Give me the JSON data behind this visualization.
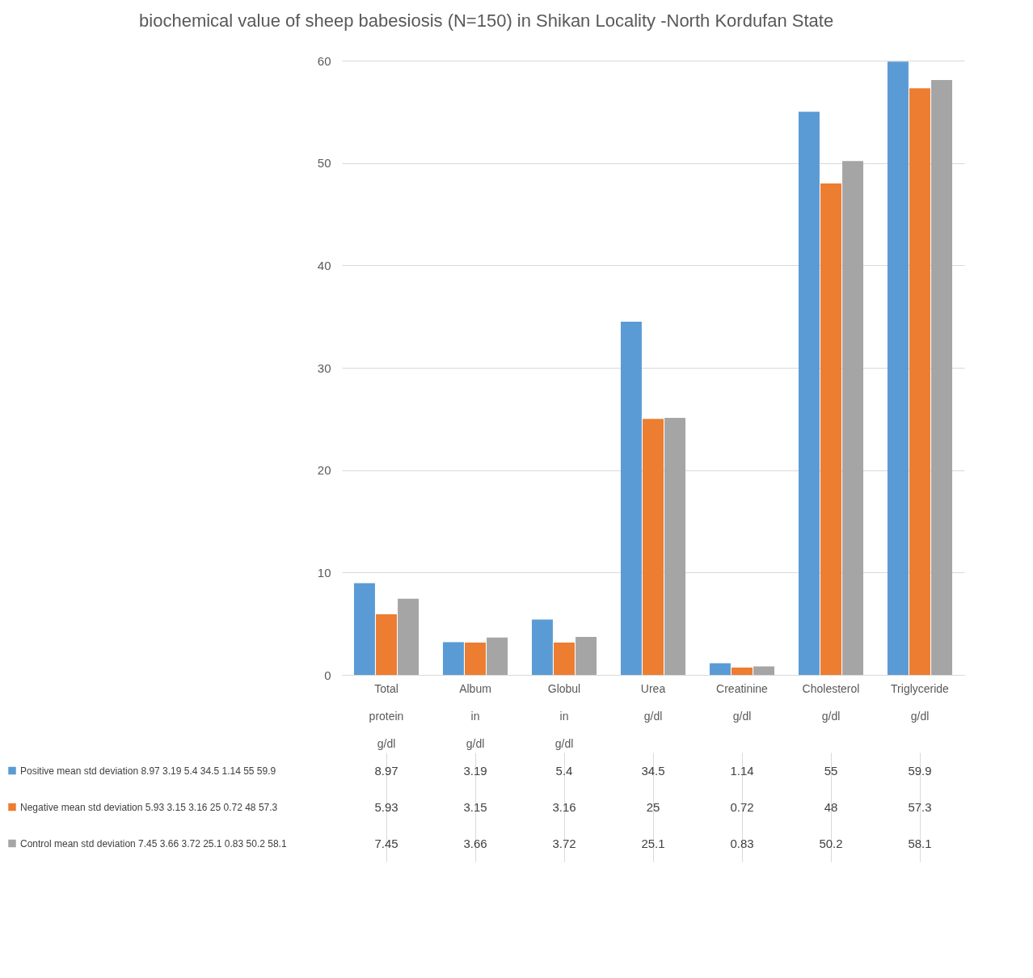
{
  "chart_data": {
    "type": "bar",
    "title": "biochemical value of sheep babesiosis (N=150) in Shikan Locality -North Kordufan State",
    "categories": [
      "Total protein g/dl",
      "Album in g/dl",
      "Globul in g/dl",
      "Urea g/dl",
      "Creatinine g/dl",
      "Cholesterol g/dl",
      "Triglyceride g/dl"
    ],
    "series": [
      {
        "name": "Positive  mean std deviation 8.97 3.19 5.4 34.5 1.14 55 59.9",
        "color": "#5b9bd5",
        "values": [
          8.97,
          3.19,
          5.4,
          34.5,
          1.14,
          55,
          59.9
        ]
      },
      {
        "name": "Negative  mean std deviation 5.93 3.15 3.16 25 0.72 48 57.3",
        "color": "#ed7d31",
        "values": [
          5.93,
          3.15,
          3.16,
          25,
          0.72,
          48,
          57.3
        ]
      },
      {
        "name": "Control mean std deviation 7.45 3.66 3.72 25.1 0.83 50.2 58.1",
        "color": "#a5a5a5",
        "values": [
          7.45,
          3.66,
          3.72,
          25.1,
          0.83,
          50.2,
          58.1
        ]
      }
    ],
    "ylim": [
      0,
      60
    ],
    "yticks": [
      0,
      10,
      20,
      30,
      40,
      50,
      60
    ],
    "grid": "y",
    "legend": "bottom",
    "data_labels": true
  }
}
